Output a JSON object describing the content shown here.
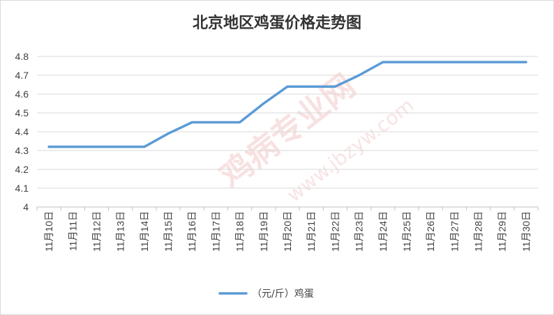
{
  "chart_data": {
    "type": "line",
    "title": "北京地区鸡蛋价格走势图",
    "categories": [
      "11月10日",
      "11月11日",
      "11月12日",
      "11月13日",
      "11月14日",
      "11月15日",
      "11月16日",
      "11月17日",
      "11月18日",
      "11月19日",
      "11月20日",
      "11月21日",
      "11月22日",
      "11月23日",
      "11月24日",
      "11月25日",
      "11月26日",
      "11月27日",
      "11月28日",
      "11月29日",
      "11月30日"
    ],
    "series": [
      {
        "name": "（元/斤）鸡蛋",
        "values": [
          4.32,
          4.32,
          4.32,
          4.32,
          4.32,
          4.39,
          4.45,
          4.45,
          4.45,
          4.55,
          4.64,
          4.64,
          4.64,
          4.7,
          4.77,
          4.77,
          4.77,
          4.77,
          4.77,
          4.77,
          4.77
        ]
      }
    ],
    "yticks": [
      "4",
      "4.1",
      "4.2",
      "4.3",
      "4.4",
      "4.5",
      "4.6",
      "4.7",
      "4.8"
    ],
    "ylim": [
      4,
      4.8
    ],
    "grid": true,
    "legend": "bottom",
    "line_color": "#5b9bd5"
  },
  "legend_label": "（元/斤）鸡蛋",
  "watermark": [
    "鸡病专业网",
    "www.jbzyw.com"
  ]
}
